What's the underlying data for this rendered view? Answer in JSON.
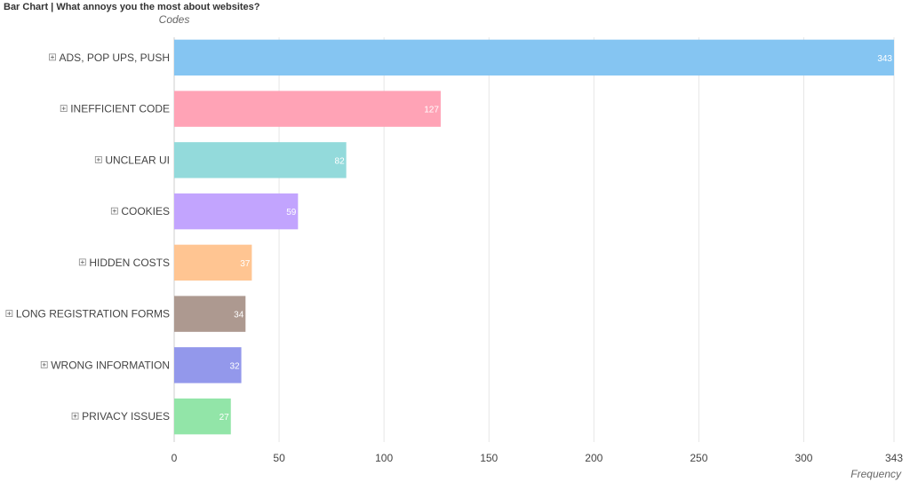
{
  "chart_data": {
    "type": "bar",
    "orientation": "horizontal",
    "title": "Bar Chart | What annoys you the most about websites?",
    "ylabel": "Codes",
    "xlabel": "Frequency",
    "categories": [
      "ADS, POP UPS, PUSH",
      "INEFFICIENT CODE",
      "UNCLEAR UI",
      "COOKIES",
      "HIDDEN COSTS",
      "LONG REGISTRATION FORMS",
      "WRONG INFORMATION",
      "PRIVACY ISSUES"
    ],
    "values": [
      343,
      127,
      82,
      59,
      37,
      34,
      32,
      27
    ],
    "colors": [
      "#85C5F2",
      "#FFA3B6",
      "#93DADB",
      "#C2A4FE",
      "#FFC592",
      "#AD9990",
      "#9398EB",
      "#92E5A8"
    ],
    "xlim": [
      0,
      343
    ],
    "xticks": [
      0,
      50,
      100,
      150,
      200,
      250,
      300,
      343
    ],
    "grid": true,
    "data_labels": true,
    "expand_icons": true
  }
}
